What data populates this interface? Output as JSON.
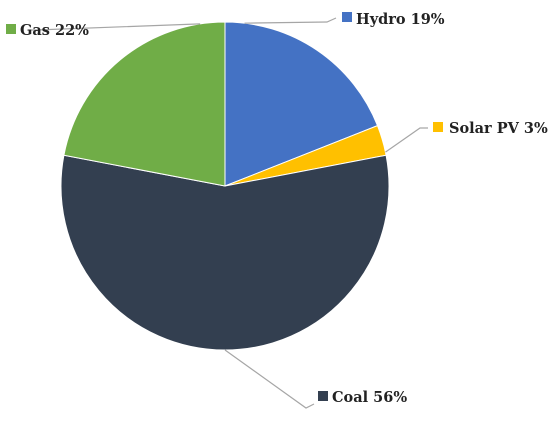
{
  "chart_data": {
    "type": "pie",
    "title": "",
    "slices": [
      {
        "label": "Hydro",
        "value": 19,
        "display": "Hydro 19%",
        "color": "#4472c4"
      },
      {
        "label": "Solar PV",
        "value": 3,
        "display": "Solar PV 3%",
        "color": "#ffc000"
      },
      {
        "label": "Coal",
        "value": 56,
        "display": "Coal 56%",
        "color": "#333f50"
      },
      {
        "label": "Gas",
        "value": 22,
        "display": "Gas 22%",
        "color": "#70ad47"
      }
    ],
    "start_angle_deg": 0,
    "direction": "clockwise",
    "legend": "none",
    "data_labels": "outside-with-leaders"
  }
}
